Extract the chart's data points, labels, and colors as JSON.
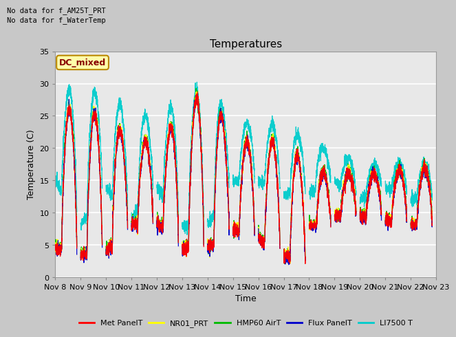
{
  "title": "Temperatures",
  "xlabel": "Time",
  "ylabel": "Temperature (C)",
  "ylim": [
    0,
    35
  ],
  "num_days": 15,
  "x_tick_labels": [
    "Nov 8",
    "Nov 9",
    "Nov 10",
    "Nov 11",
    "Nov 12",
    "Nov 13",
    "Nov 14",
    "Nov 15",
    "Nov 16",
    "Nov 17",
    "Nov 18",
    "Nov 19",
    "Nov 20",
    "Nov 21",
    "Nov 22",
    "Nov 23"
  ],
  "legend_entries": [
    "Met PanelT",
    "NR01_PRT",
    "HMP60 AirT",
    "Flux PanelT",
    "LI7500 T"
  ],
  "legend_colors": [
    "#ff0000",
    "#ffff00",
    "#00bb00",
    "#0000cc",
    "#00cccc"
  ],
  "note1": "No data for f_AM25T_PRT",
  "note2": "No data for f_WaterTemp",
  "dc_mixed_label": "DC_mixed",
  "dc_mixed_color": "#880000",
  "dc_mixed_bg": "#ffffaa",
  "dc_mixed_border": "#bb8800",
  "background_color": "#c8c8c8",
  "plot_bg": "#e8e8e8",
  "grid_color": "#ffffff",
  "seed": 42
}
